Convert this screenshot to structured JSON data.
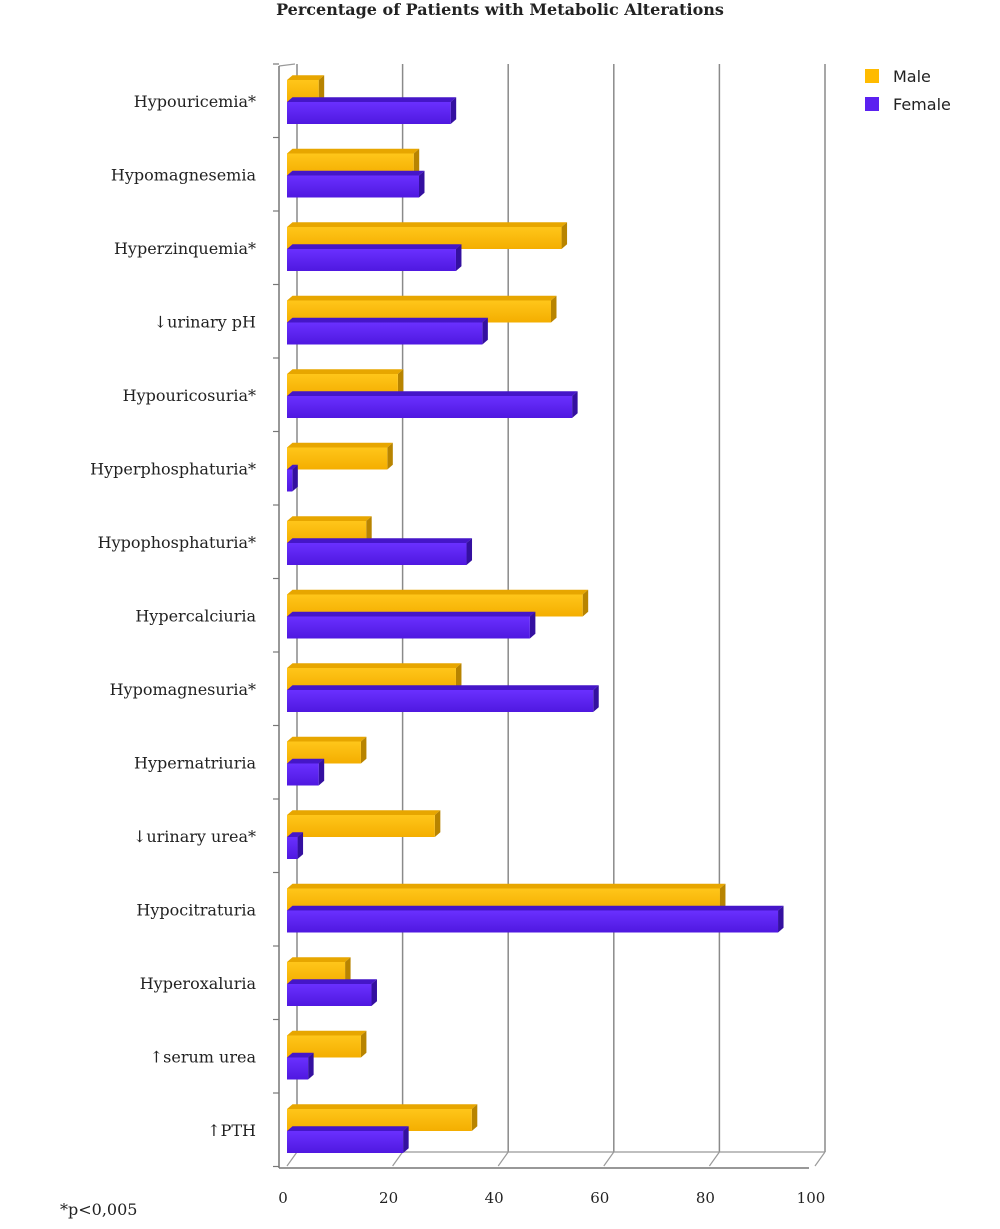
{
  "chart_data": {
    "type": "bar",
    "orientation": "horizontal",
    "title": "Percentage of Patients with Metabolic Alterations",
    "xlabel": "",
    "ylabel": "",
    "xlim": [
      0,
      100
    ],
    "xticks": [
      "0",
      "20",
      "40",
      "60",
      "80",
      "100"
    ],
    "grid": true,
    "legend_position": "top-right",
    "categories": [
      "Hypouricemia*",
      "Hypomagnesemia",
      "Hyperzinquemia*",
      "↓urinary pH",
      "Hypouricosuria*",
      "Hyperphosphaturia*",
      "Hypophosphaturia*",
      "Hypercalciuria",
      "Hypomagnesuria*",
      "Hypernatriuria",
      "↓urinary urea*",
      "Hypocitraturia",
      "Hyperoxaluria",
      "↑serum urea",
      "↑PTH"
    ],
    "series": [
      {
        "name": "Male",
        "color": "#FFBB00",
        "values": [
          6,
          24,
          52,
          50,
          21,
          19,
          15,
          56,
          32,
          14,
          28,
          82,
          11,
          14,
          35
        ]
      },
      {
        "name": "Female",
        "color": "#5B21F0",
        "values": [
          31,
          25,
          32,
          37,
          54,
          1,
          34,
          46,
          58,
          6,
          2,
          93,
          16,
          4,
          22
        ]
      }
    ],
    "footnote": "*p<0,005"
  }
}
